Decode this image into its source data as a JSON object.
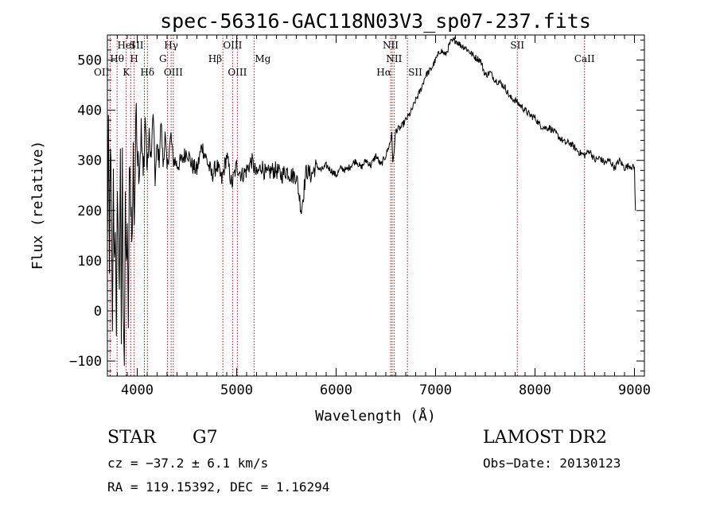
{
  "chart_data": {
    "type": "line",
    "title": "spec-56316-GAC118N03V3_sp07-237.fits",
    "xlabel": "Wavelength (Å)",
    "ylabel": "Flux (relative)",
    "xlim": [
      3700,
      9100
    ],
    "ylim": [
      -130,
      550
    ],
    "xticks": [
      4000,
      5000,
      6000,
      7000,
      8000,
      9000
    ],
    "yticks": [
      -100,
      0,
      100,
      200,
      300,
      400,
      500
    ],
    "grid": false,
    "series": [
      {
        "x": [
          3700,
          3710,
          3720,
          3730,
          3740,
          3750,
          3760,
          3770,
          3780,
          3790,
          3800,
          3810,
          3820,
          3830,
          3840,
          3850,
          3860,
          3870,
          3880,
          3890,
          3900,
          3910,
          3920,
          3930,
          3940,
          3950,
          3960,
          3970,
          3980,
          3990,
          4000,
          4020,
          4040,
          4060,
          4080,
          4100,
          4120,
          4140,
          4160,
          4180,
          4200,
          4220,
          4240,
          4260,
          4280,
          4300,
          4320,
          4340,
          4360,
          4380,
          4400,
          4450,
          4500,
          4550,
          4600,
          4650,
          4700,
          4750,
          4800,
          4850,
          4900,
          4950,
          5000,
          5050,
          5100,
          5150,
          5200,
          5250,
          5300,
          5350,
          5400,
          5450,
          5500,
          5550,
          5600,
          5650,
          5700,
          5750,
          5800,
          5850,
          5900,
          5950,
          6000,
          6050,
          6100,
          6150,
          6200,
          6250,
          6300,
          6350,
          6400,
          6450,
          6500,
          6550,
          6560,
          6570,
          6600,
          6650,
          6700,
          6750,
          6800,
          6850,
          6900,
          6950,
          7000,
          7050,
          7100,
          7150,
          7200,
          7250,
          7300,
          7350,
          7400,
          7450,
          7500,
          7550,
          7600,
          7650,
          7700,
          7750,
          7800,
          7850,
          7900,
          7950,
          8000,
          8050,
          8100,
          8150,
          8200,
          8250,
          8300,
          8350,
          8400,
          8450,
          8500,
          8550,
          8600,
          8650,
          8700,
          8750,
          8800,
          8850,
          8900,
          8950,
          9000,
          9010
        ],
        "y": [
          120,
          380,
          60,
          350,
          200,
          -60,
          260,
          100,
          180,
          -80,
          270,
          120,
          60,
          290,
          -60,
          300,
          20,
          -100,
          200,
          80,
          180,
          -60,
          280,
          240,
          200,
          140,
          320,
          180,
          280,
          420,
          330,
          280,
          360,
          260,
          390,
          280,
          350,
          300,
          400,
          260,
          330,
          300,
          380,
          290,
          350,
          280,
          320,
          350,
          300,
          300,
          290,
          300,
          320,
          290,
          280,
          330,
          300,
          270,
          290,
          260,
          310,
          250,
          290,
          270,
          280,
          300,
          270,
          290,
          270,
          280,
          280,
          270,
          280,
          270,
          270,
          200,
          280,
          270,
          290,
          280,
          290,
          280,
          270,
          285,
          280,
          290,
          300,
          285,
          300,
          290,
          310,
          290,
          310,
          340,
          360,
          290,
          360,
          365,
          380,
          395,
          420,
          440,
          470,
          480,
          500,
          520,
          510,
          535,
          540,
          530,
          525,
          515,
          505,
          500,
          470,
          475,
          460,
          455,
          445,
          425,
          420,
          410,
          400,
          390,
          385,
          370,
          365,
          365,
          355,
          345,
          335,
          335,
          325,
          315,
          310,
          320,
          300,
          305,
          295,
          300,
          285,
          300,
          285,
          290,
          285,
          200
        ]
      }
    ],
    "annotations": {
      "lines": [
        {
          "label": "OII",
          "x": 3727
        },
        {
          "label": "Hθ",
          "x": 3797
        },
        {
          "label": "HeI",
          "x": 3889
        },
        {
          "label": "SII",
          "x": 4072
        },
        {
          "label": "K",
          "x": 3934
        },
        {
          "label": "H",
          "x": 3969
        },
        {
          "label": "Hδ",
          "x": 4102
        },
        {
          "label": "Hγ",
          "x": 4341
        },
        {
          "label": "G",
          "x": 4305
        },
        {
          "label": "OIII",
          "x": 4363
        },
        {
          "label": "Hβ",
          "x": 4861
        },
        {
          "label": "OIII",
          "x": 4959
        },
        {
          "label": "OIII",
          "x": 5007
        },
        {
          "label": "Mg",
          "x": 5175
        },
        {
          "label": "NII",
          "x": 6548
        },
        {
          "label": "NII",
          "x": 6583
        },
        {
          "label": "Hα",
          "x": 6563
        },
        {
          "label": "SII",
          "x": 6717
        },
        {
          "label": "SII",
          "x": 7822
        },
        {
          "label": "CaII",
          "x": 8498
        }
      ]
    }
  },
  "info": {
    "class": "STAR",
    "subclass": "G7",
    "survey": "LAMOST DR2",
    "cz": "cz = −37.2 ± 6.1 km/s",
    "obs_date": "Obs−Date: 20130123",
    "radec": "RA = 119.15392, DEC =    1.16294"
  },
  "colors": {
    "spectrum": "#000000",
    "line_markers": "#8b1a1a"
  }
}
